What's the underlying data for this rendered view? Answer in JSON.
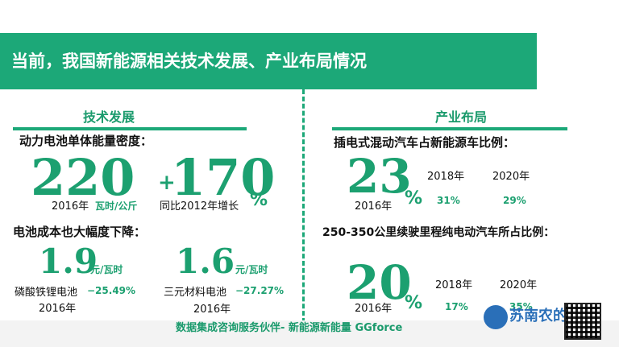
{
  "header": {
    "title": "当前，我国新能源相关技术发展、产业布局情况"
  },
  "left": {
    "section_title": "技术发展",
    "density_label": "动力电池单体能量密度：",
    "density_value": "220",
    "density_unit": "瓦时/公斤",
    "density_year": "2016年",
    "growth_plus": "+",
    "growth_value": "170",
    "growth_pct": "%",
    "growth_desc": "同比2012年增长",
    "cost_label": "电池成本也大幅度下降：",
    "lfp_value": "1.9",
    "lfp_unit": "元/瓦时",
    "lfp_name": "磷酸铁锂电池",
    "lfp_change": "−25.49%",
    "lfp_year": "2016年",
    "ncm_value": "1.6",
    "ncm_unit": "元/瓦时",
    "ncm_name": "三元材料电池",
    "ncm_change": "−27.27%",
    "ncm_year": "2016年"
  },
  "right": {
    "section_title": "产业布局",
    "phev_label": "插电式混动汽车占新能源车比例：",
    "phev_value": "23",
    "phev_pct": "%",
    "phev_year": "2016年",
    "phev_y2018": "2018年",
    "phev_v2018": "31%",
    "phev_y2020": "2020年",
    "phev_v2020": "29%",
    "bev_label": "250-350公里续驶里程纯电动汽车所占比例：",
    "bev_value": "20",
    "bev_pct": "%",
    "bev_year": "2016年",
    "bev_y2018": "2018年",
    "bev_v2018": "17%",
    "bev_y2020": "2020年",
    "bev_v2020": "35%"
  },
  "footer": {
    "text": "数据集成咨询服务伙伴- 新能源新能量 GGforce"
  },
  "watermark": {
    "text": "苏南农的长"
  },
  "colors": {
    "accent": "#1ca878",
    "text": "#111111"
  }
}
